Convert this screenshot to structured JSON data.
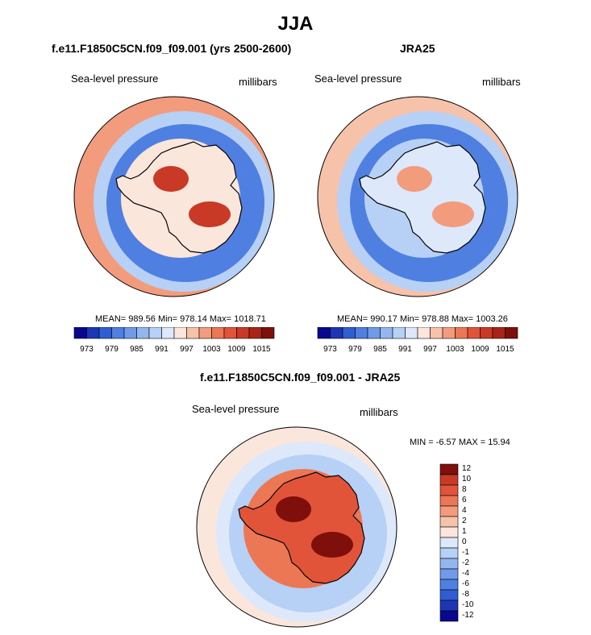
{
  "page_title": "JJA",
  "colors": {
    "palette_abs": [
      "#08088f",
      "#1c36b4",
      "#2f5ed2",
      "#4f7fe0",
      "#6f9be8",
      "#93b6ef",
      "#b7d0f5",
      "#dde9fa",
      "#fbe6dc",
      "#f7c2aa",
      "#f29c7d",
      "#ec7754",
      "#e2543a",
      "#c93a26",
      "#a82417",
      "#7e0f0b"
    ],
    "palette_diff": [
      "#08088f",
      "#1c36b4",
      "#2f5ed2",
      "#4f7fe0",
      "#6f9be8",
      "#93b6ef",
      "#b7d0f5",
      "#dde9fa",
      "#fbe6dc",
      "#f7c2aa",
      "#f29c7d",
      "#ec7754",
      "#e2543a",
      "#c93a26",
      "#7e0f0b"
    ]
  },
  "chart_data": [
    {
      "type": "heatmap",
      "projection": "south-polar-stereographic",
      "title": "f.e11.F1850C5CN.f09_f09.001 (yrs 2500-2600)",
      "left_label": "Sea-level pressure",
      "right_label": "millibars",
      "stats": "MEAN= 989.56  Min= 978.14  Max= 1018.71",
      "mean": 989.56,
      "min": 978.14,
      "max": 1018.71,
      "colorbar_ticks": [
        "973",
        "979",
        "985",
        "991",
        "997",
        "1003",
        "1009",
        "1015"
      ],
      "levels": [
        973,
        976,
        979,
        982,
        985,
        988,
        991,
        994,
        997,
        1000,
        1003,
        1006,
        1009,
        1012,
        1015
      ],
      "pattern": {
        "ocean_ring": 979,
        "outer_edge": 1000,
        "continent_high": 1009
      }
    },
    {
      "type": "heatmap",
      "projection": "south-polar-stereographic",
      "title": "JRA25",
      "left_label": "Sea-level pressure",
      "right_label": "millibars",
      "stats": "MEAN= 990.17  Min= 978.88  Max= 1003.26",
      "mean": 990.17,
      "min": 978.88,
      "max": 1003.26,
      "colorbar_ticks": [
        "973",
        "979",
        "985",
        "991",
        "997",
        "1003",
        "1009",
        "1015"
      ],
      "levels": [
        973,
        976,
        979,
        982,
        985,
        988,
        991,
        994,
        997,
        1000,
        1003,
        1006,
        1009,
        1012,
        1015
      ],
      "pattern": {
        "ocean_ring": 980,
        "outer_edge": 997,
        "continent_high": 1001
      }
    },
    {
      "type": "heatmap",
      "projection": "south-polar-stereographic",
      "title": "f.e11.F1850C5CN.f09_f09.001 - JRA25",
      "left_label": "Sea-level pressure",
      "right_label": "millibars",
      "stats": "MIN =  -6.57 MAX =  15.94",
      "min": -6.57,
      "max": 15.94,
      "colorbar_ticks": [
        "-12",
        "-10",
        "-8",
        "-6",
        "-4",
        "-2",
        "-1",
        "0",
        "1",
        "2",
        "4",
        "6",
        "8",
        "10",
        "12"
      ],
      "levels": [
        -12,
        -10,
        -8,
        -6,
        -4,
        -2,
        -1,
        0,
        1,
        2,
        4,
        6,
        8,
        10,
        12
      ],
      "pattern": {
        "ocean_ring": -1.5,
        "outer_edge": 0.5,
        "continent_high": 10
      }
    }
  ]
}
